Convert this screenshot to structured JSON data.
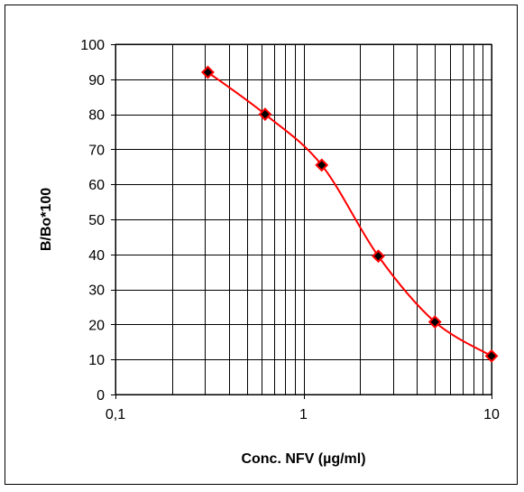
{
  "chart_data": {
    "type": "line",
    "xlabel": "Conc. NFV (µg/ml)",
    "ylabel": "B/Bo*100",
    "x_scale": "log",
    "xlim": [
      0.1,
      10
    ],
    "ylim": [
      0,
      100
    ],
    "x_ticks": [
      "0,1",
      "1",
      "10"
    ],
    "y_ticks": [
      "0",
      "10",
      "20",
      "30",
      "40",
      "50",
      "60",
      "70",
      "80",
      "90",
      "100"
    ],
    "grid": true,
    "series": [
      {
        "x": [
          0.31,
          0.625,
          1.25,
          2.5,
          5,
          10
        ],
        "y": [
          92,
          80,
          65.5,
          39.5,
          20.7,
          11
        ]
      }
    ],
    "colors": {
      "line": "#ff0000",
      "marker_fill": "#000000",
      "marker_edge": "#ff0000",
      "grid": "#000000"
    }
  }
}
